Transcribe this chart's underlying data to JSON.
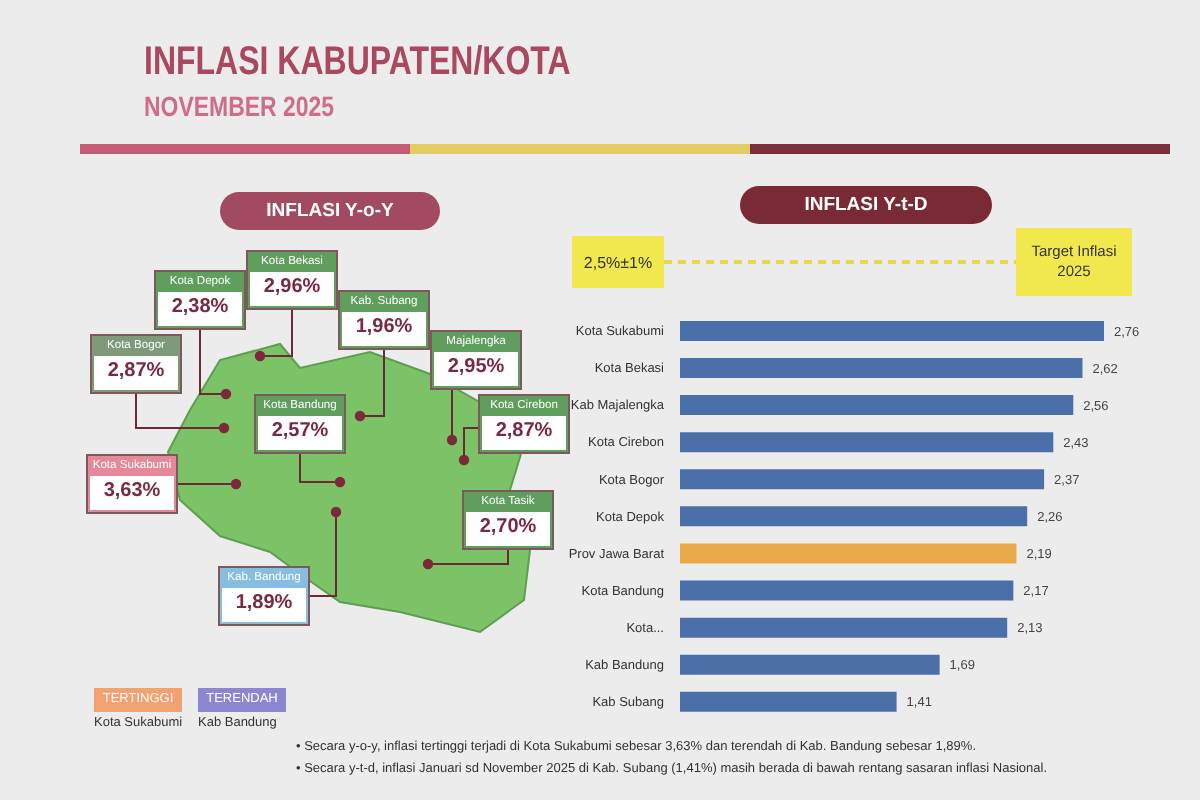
{
  "chart_data": [
    {
      "type": "other",
      "title": "INFLASI KABUPATEN/KOTA",
      "subtitle": "NOVEMBER 2025"
    },
    {
      "type": "other",
      "title": "INFLASI Y-o-Y",
      "categories": [
        "Kota Depok",
        "Kota Bekasi",
        "Kab. Subang",
        "Majalengka",
        "Kota Cirebon",
        "Kota Bogor",
        "Kota Bandung",
        "Kota Sukabumi",
        "Kota Tasik",
        "Kab. Bandung"
      ],
      "values": [
        2.38,
        2.96,
        1.96,
        2.95,
        2.87,
        2.87,
        2.57,
        3.63,
        2.7,
        1.89
      ],
      "value_labels": [
        "2,38%",
        "2,96%",
        "1,96%",
        "2,95%",
        "2,87%",
        "2,87%",
        "2,57%",
        "3,63%",
        "2,70%",
        "1,89%"
      ],
      "colors": [
        "#5f9e5c",
        "#5f9e5c",
        "#5f9e5c",
        "#5f9e5c",
        "#5f9e5c",
        "#7f9a78",
        "#5f9e5c",
        "#e3899a",
        "#5f9e5c",
        "#86bde0"
      ],
      "annotations": [
        "TERTINGGI",
        "Kota Sukabumi",
        "TERENDAH",
        "Kab Bandung"
      ]
    },
    {
      "type": "bar",
      "orientation": "horizontal",
      "title": "INFLASI Y-t-D",
      "categories": [
        "Kota Sukabumi",
        "Kota Bekasi",
        "Kab Majalengka",
        "Kota Cirebon",
        "Kota Bogor",
        "Kota Depok",
        "Prov Jawa Barat",
        "Kota Bandung",
        "Kota...",
        "Kab Bandung",
        "Kab Subang"
      ],
      "values": [
        2.76,
        2.62,
        2.56,
        2.43,
        2.37,
        2.26,
        2.19,
        2.17,
        2.13,
        1.69,
        1.41
      ],
      "value_labels": [
        "2,76",
        "2,62",
        "2,56",
        "2,43",
        "2,37",
        "2,26",
        "2,19",
        "2,17",
        "2,13",
        "1,69",
        "1,41"
      ],
      "colors": [
        "#4b6fa8",
        "#4b6fa8",
        "#4b6fa8",
        "#4b6fa8",
        "#4b6fa8",
        "#4b6fa8",
        "#e9a94b",
        "#4b6fa8",
        "#4b6fa8",
        "#4b6fa8",
        "#4b6fa8"
      ],
      "annotations": [
        "2,5%±1%",
        "Target Inflasi 2025"
      ]
    },
    {
      "type": "other",
      "annotations": [
        "• Secara y-o-y, inflasi tertinggi terjadi di Kota Sukabumi sebesar 3,63% dan terendah di Kab. Bandung sebesar 1,89%.",
        "• Secara y-t-d, inflasi Januari sd November 2025 di Kab. Subang (1,41%) masih berada di bawah rentang sasaran inflasi Nasional."
      ]
    }
  ]
}
